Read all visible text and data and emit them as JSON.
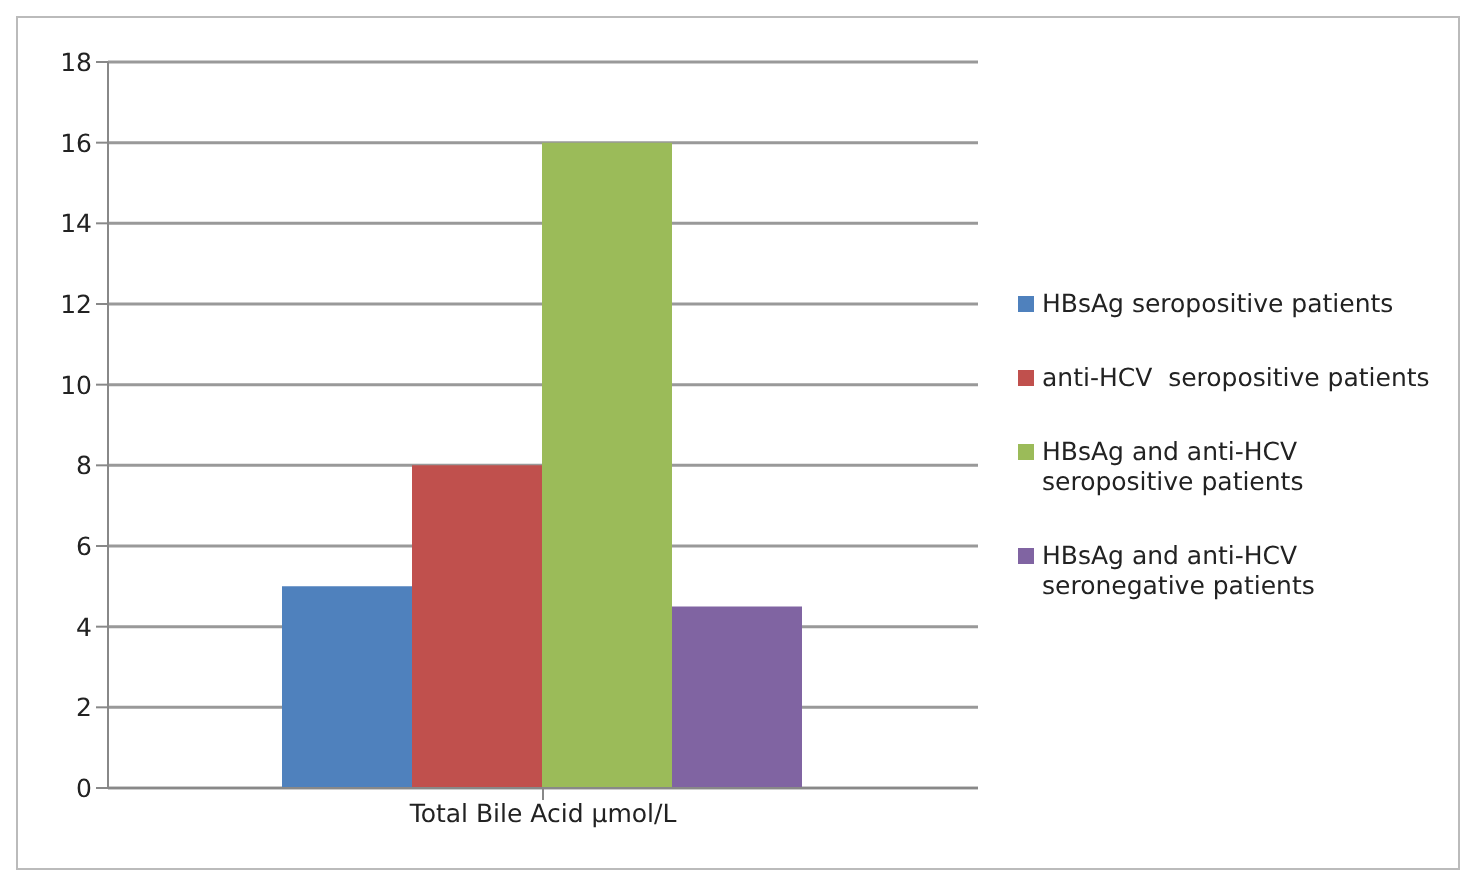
{
  "chart_data": {
    "type": "bar",
    "categories": [
      "Total Bile Acid µmol/L"
    ],
    "series": [
      {
        "name": "HBsAg seropositive patients",
        "color": "#4f81bd",
        "values": [
          5
        ]
      },
      {
        "name": "anti-HCV  seropositive patients",
        "color": "#c0504d",
        "values": [
          8
        ]
      },
      {
        "name": "HBsAg and anti-HCV seropositive patients",
        "color": "#9bbb59",
        "values": [
          16
        ]
      },
      {
        "name": "HBsAg and anti-HCV seronegative patients",
        "color": "#8064a2",
        "values": [
          4.5
        ]
      }
    ],
    "ylim": [
      0,
      18
    ],
    "yticks": [
      0,
      2,
      4,
      6,
      8,
      10,
      12,
      14,
      16,
      18
    ],
    "grid": "y",
    "legend": "right"
  }
}
